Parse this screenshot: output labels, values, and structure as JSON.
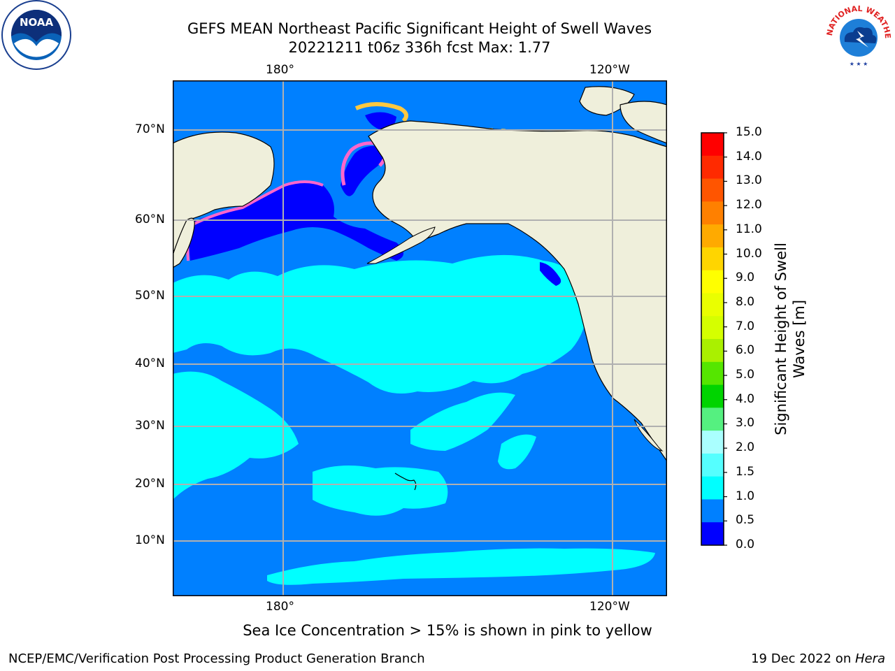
{
  "title_line1": "GEFS MEAN Northeast Pacific Significant Height of Swell Waves",
  "title_line2": "20221211 t06z 336h fcst   Max: 1.77",
  "lon_ticks": [
    "180°",
    "120°W"
  ],
  "lat_ticks": [
    "70°N",
    "60°N",
    "50°N",
    "40°N",
    "30°N",
    "20°N",
    "10°N"
  ],
  "colorbar": {
    "title_line1": "Significant Height of Swell",
    "title_line2": "Waves [m]",
    "ticks": [
      "15.0",
      "14.0",
      "13.0",
      "12.0",
      "11.0",
      "10.0",
      "9.0",
      "8.0",
      "7.0",
      "6.0",
      "5.0",
      "4.0",
      "3.0",
      "2.0",
      "1.5",
      "1.0",
      "0.5",
      "0.0"
    ],
    "colors": [
      "#ff0000",
      "#ff2a00",
      "#ff5500",
      "#ff8000",
      "#ffaa00",
      "#ffd500",
      "#ffff00",
      "#eaff00",
      "#d5ff00",
      "#aaf000",
      "#55e600",
      "#00d400",
      "#55f080",
      "#aaffff",
      "#55ffff",
      "#00ffff",
      "#0080ff",
      "#0000ff"
    ]
  },
  "map_colors": {
    "land": "#efefdb",
    "ocean_dark": "#0000ff",
    "ocean_mid": "#0080ff",
    "ocean_light": "#00ffff",
    "ice_pink": "#ff66cc",
    "ice_yellow": "#ffc840"
  },
  "note": "Sea Ice Concentration > 15% is shown in pink to yellow",
  "footer_left": "NCEP/EMC/Verification Post Processing Product Generation Branch",
  "footer_date": "19 Dec 2022 on ",
  "footer_machine": "Hera",
  "logos": {
    "left": "NOAA",
    "right_text": "NATIONAL WEATHER SERVICE"
  }
}
